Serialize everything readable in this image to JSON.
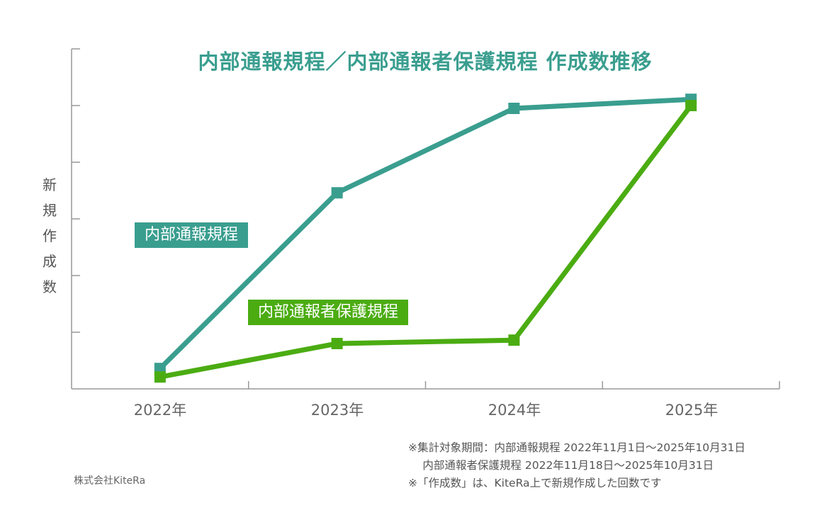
{
  "chart_data": {
    "type": "line",
    "title": "内部通報規程／内部通報者保護規程 作成数推移",
    "xlabel": "",
    "ylabel": "新規作成数",
    "categories": [
      "2022年",
      "2023年",
      "2024年",
      "2025年"
    ],
    "ylim": [
      0,
      6
    ],
    "y_tick_count": 6,
    "y_tick_labels_shown": false,
    "grid": false,
    "series": [
      {
        "name": "内部通報規程",
        "color": "#3a9e8f",
        "values": [
          0.36,
          3.46,
          4.95,
          5.11
        ]
      },
      {
        "name": "内部通報者保護規程",
        "color": "#4bac12",
        "values": [
          0.21,
          0.8,
          0.86,
          5.0
        ]
      }
    ]
  },
  "notes": [
    "※集計対象期間：内部通報規程 2022年11月1日〜2025年10月31日",
    "　 内部通報者保護規程 2022年11月18日〜2025年10月31日",
    "※「作成数」は、KiteRa上で新規作成した回数です"
  ],
  "credit": "株式会社KiteRa",
  "colors": {
    "axis": "#999999",
    "title": "#3a9e8f"
  }
}
